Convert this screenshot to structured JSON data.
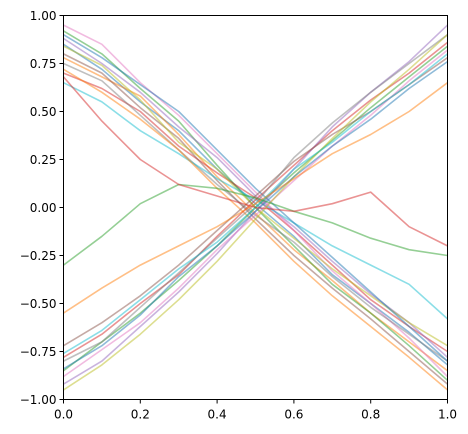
{
  "chart_data": {
    "type": "line",
    "title": "",
    "xlabel": "",
    "ylabel": "",
    "xlim": [
      0,
      1
    ],
    "ylim": [
      -1,
      1
    ],
    "grid": false,
    "legend": "none",
    "x_ticks": [
      0.0,
      0.2,
      0.4,
      0.6,
      0.8,
      1.0
    ],
    "x_tick_labels": [
      "0.0",
      "0.2",
      "0.4",
      "0.6",
      "0.8",
      "1.0"
    ],
    "y_ticks": [
      1.0,
      0.75,
      0.5,
      0.25,
      0.0,
      -0.25,
      -0.5,
      -0.75,
      -1.0
    ],
    "y_tick_labels": [
      "1.00",
      "0.75",
      "0.50",
      "0.25",
      "0.00",
      "−0.25",
      "−0.50",
      "−0.75",
      "−1.00"
    ],
    "palette": [
      "#1f77b4",
      "#ff7f0e",
      "#2ca02c",
      "#d62728",
      "#9467bd",
      "#8c564b",
      "#e377c2",
      "#7f7f7f",
      "#bcbd22",
      "#17becf"
    ],
    "series": [
      {
        "x": [
          0,
          0.1,
          0.2,
          0.3,
          0.4,
          0.5,
          0.6,
          0.7,
          0.8,
          0.9,
          1.0
        ],
        "values": [
          0.85,
          0.72,
          0.55,
          0.4,
          0.2,
          0.02,
          -0.15,
          -0.35,
          -0.5,
          -0.65,
          -0.82
        ]
      },
      {
        "x": [
          0,
          0.1,
          0.2,
          0.3,
          0.4,
          0.5,
          0.6,
          0.7,
          0.8,
          0.9,
          1.0
        ],
        "values": [
          0.78,
          0.68,
          0.58,
          0.38,
          0.16,
          -0.03,
          -0.22,
          -0.38,
          -0.55,
          -0.7,
          -0.85
        ]
      },
      {
        "x": [
          0,
          0.1,
          0.2,
          0.3,
          0.4,
          0.5,
          0.6,
          0.7,
          0.8,
          0.9,
          1.0
        ],
        "values": [
          0.92,
          0.8,
          0.62,
          0.45,
          0.22,
          0.0,
          -0.2,
          -0.4,
          -0.55,
          -0.72,
          -0.9
        ]
      },
      {
        "x": [
          0,
          0.1,
          0.2,
          0.3,
          0.4,
          0.5,
          0.6,
          0.7,
          0.8,
          0.9,
          1.0
        ],
        "values": [
          0.7,
          0.62,
          0.5,
          0.32,
          0.18,
          0.05,
          -0.12,
          -0.3,
          -0.48,
          -0.62,
          -0.75
        ]
      },
      {
        "x": [
          0,
          0.1,
          0.2,
          0.3,
          0.4,
          0.5,
          0.6,
          0.7,
          0.8,
          0.9,
          1.0
        ],
        "values": [
          0.88,
          0.75,
          0.6,
          0.42,
          0.26,
          0.06,
          -0.1,
          -0.28,
          -0.45,
          -0.6,
          -0.78
        ]
      },
      {
        "x": [
          0,
          0.1,
          0.2,
          0.3,
          0.4,
          0.5,
          0.6,
          0.7,
          0.8,
          0.9,
          1.0
        ],
        "values": [
          0.8,
          0.7,
          0.52,
          0.36,
          0.14,
          -0.06,
          -0.25,
          -0.42,
          -0.58,
          -0.75,
          -0.92
        ]
      },
      {
        "x": [
          0,
          0.1,
          0.2,
          0.3,
          0.4,
          0.5,
          0.6,
          0.7,
          0.8,
          0.9,
          1.0
        ],
        "values": [
          0.95,
          0.85,
          0.65,
          0.48,
          0.28,
          0.08,
          -0.12,
          -0.33,
          -0.5,
          -0.68,
          -0.88
        ]
      },
      {
        "x": [
          0,
          0.1,
          0.2,
          0.3,
          0.4,
          0.5,
          0.6,
          0.7,
          0.8,
          0.9,
          1.0
        ],
        "values": [
          0.75,
          0.66,
          0.48,
          0.3,
          0.12,
          -0.04,
          -0.18,
          -0.36,
          -0.52,
          -0.66,
          -0.8
        ]
      },
      {
        "x": [
          0,
          0.1,
          0.2,
          0.3,
          0.4,
          0.5,
          0.6,
          0.7,
          0.8,
          0.9,
          1.0
        ],
        "values": [
          0.84,
          0.74,
          0.56,
          0.34,
          0.2,
          0.0,
          -0.16,
          -0.32,
          -0.46,
          -0.6,
          -0.72
        ]
      },
      {
        "x": [
          0,
          0.1,
          0.2,
          0.3,
          0.4,
          0.5,
          0.6,
          0.7,
          0.8,
          0.9,
          1.0
        ],
        "values": [
          0.65,
          0.55,
          0.4,
          0.28,
          0.15,
          0.04,
          -0.08,
          -0.2,
          -0.3,
          -0.4,
          -0.58
        ]
      },
      {
        "x": [
          0,
          0.1,
          0.2,
          0.3,
          0.4,
          0.5,
          0.6,
          0.7,
          0.8,
          0.9,
          1.0
        ],
        "values": [
          0.9,
          0.78,
          0.64,
          0.5,
          0.3,
          0.1,
          -0.08,
          -0.26,
          -0.44,
          -0.62,
          -0.8
        ]
      },
      {
        "x": [
          0,
          0.1,
          0.2,
          0.3,
          0.4,
          0.5,
          0.6,
          0.7,
          0.8,
          0.9,
          1.0
        ],
        "values": [
          0.72,
          0.6,
          0.46,
          0.3,
          0.1,
          -0.08,
          -0.28,
          -0.46,
          -0.62,
          -0.78,
          -0.95
        ]
      },
      {
        "x": [
          0,
          0.1,
          0.2,
          0.3,
          0.4,
          0.5,
          0.6,
          0.7,
          0.8,
          0.9,
          1.0
        ],
        "values": [
          -0.85,
          -0.7,
          -0.55,
          -0.38,
          -0.2,
          0.0,
          0.18,
          0.35,
          0.52,
          0.68,
          0.84
        ]
      },
      {
        "x": [
          0,
          0.1,
          0.2,
          0.3,
          0.4,
          0.5,
          0.6,
          0.7,
          0.8,
          0.9,
          1.0
        ],
        "values": [
          -0.78,
          -0.66,
          -0.5,
          -0.35,
          -0.15,
          0.04,
          0.22,
          0.4,
          0.56,
          0.7,
          0.86
        ]
      },
      {
        "x": [
          0,
          0.1,
          0.2,
          0.3,
          0.4,
          0.5,
          0.6,
          0.7,
          0.8,
          0.9,
          1.0
        ],
        "values": [
          -0.92,
          -0.8,
          -0.62,
          -0.44,
          -0.24,
          -0.02,
          0.2,
          0.42,
          0.6,
          0.76,
          0.95
        ]
      },
      {
        "x": [
          0,
          0.1,
          0.2,
          0.3,
          0.4,
          0.5,
          0.6,
          0.7,
          0.8,
          0.9,
          1.0
        ],
        "values": [
          -0.72,
          -0.6,
          -0.46,
          -0.3,
          -0.12,
          0.06,
          0.24,
          0.38,
          0.5,
          0.64,
          0.78
        ]
      },
      {
        "x": [
          0,
          0.1,
          0.2,
          0.3,
          0.4,
          0.5,
          0.6,
          0.7,
          0.8,
          0.9,
          1.0
        ],
        "values": [
          -0.88,
          -0.74,
          -0.6,
          -0.42,
          -0.22,
          -0.04,
          0.14,
          0.32,
          0.48,
          0.66,
          0.82
        ]
      },
      {
        "x": [
          0,
          0.1,
          0.2,
          0.3,
          0.4,
          0.5,
          0.6,
          0.7,
          0.8,
          0.9,
          1.0
        ],
        "values": [
          -0.8,
          -0.7,
          -0.52,
          -0.34,
          -0.16,
          0.02,
          0.26,
          0.44,
          0.6,
          0.75,
          0.9
        ]
      },
      {
        "x": [
          0,
          0.1,
          0.2,
          0.3,
          0.4,
          0.5,
          0.6,
          0.7,
          0.8,
          0.9,
          1.0
        ],
        "values": [
          -0.95,
          -0.82,
          -0.66,
          -0.48,
          -0.28,
          -0.06,
          0.16,
          0.36,
          0.55,
          0.72,
          0.9
        ]
      },
      {
        "x": [
          0,
          0.1,
          0.2,
          0.3,
          0.4,
          0.5,
          0.6,
          0.7,
          0.8,
          0.9,
          1.0
        ],
        "values": [
          -0.76,
          -0.64,
          -0.48,
          -0.32,
          -0.18,
          0.0,
          0.2,
          0.34,
          0.5,
          0.64,
          0.8
        ]
      },
      {
        "x": [
          0,
          0.1,
          0.2,
          0.3,
          0.4,
          0.5,
          0.6,
          0.7,
          0.8,
          0.9,
          1.0
        ],
        "values": [
          -0.84,
          -0.72,
          -0.56,
          -0.36,
          -0.2,
          -0.02,
          0.16,
          0.32,
          0.46,
          0.62,
          0.76
        ]
      },
      {
        "x": [
          0,
          0.1,
          0.2,
          0.3,
          0.4,
          0.5,
          0.6,
          0.7,
          0.8,
          0.9,
          1.0
        ],
        "values": [
          -0.55,
          -0.42,
          -0.3,
          -0.2,
          -0.1,
          0.02,
          0.15,
          0.28,
          0.38,
          0.5,
          0.65
        ]
      },
      {
        "x": [
          0,
          0.1,
          0.2,
          0.3,
          0.4,
          0.5,
          0.6,
          0.7,
          0.8,
          0.9,
          1.0
        ],
        "values": [
          -0.3,
          -0.15,
          0.02,
          0.12,
          0.1,
          0.05,
          -0.02,
          -0.08,
          -0.16,
          -0.22,
          -0.25
        ]
      },
      {
        "x": [
          0,
          0.1,
          0.2,
          0.3,
          0.4,
          0.5,
          0.6,
          0.7,
          0.8,
          0.9,
          1.0
        ],
        "values": [
          0.68,
          0.45,
          0.25,
          0.12,
          0.06,
          0.0,
          -0.02,
          0.02,
          0.08,
          -0.1,
          -0.2
        ]
      }
    ]
  }
}
